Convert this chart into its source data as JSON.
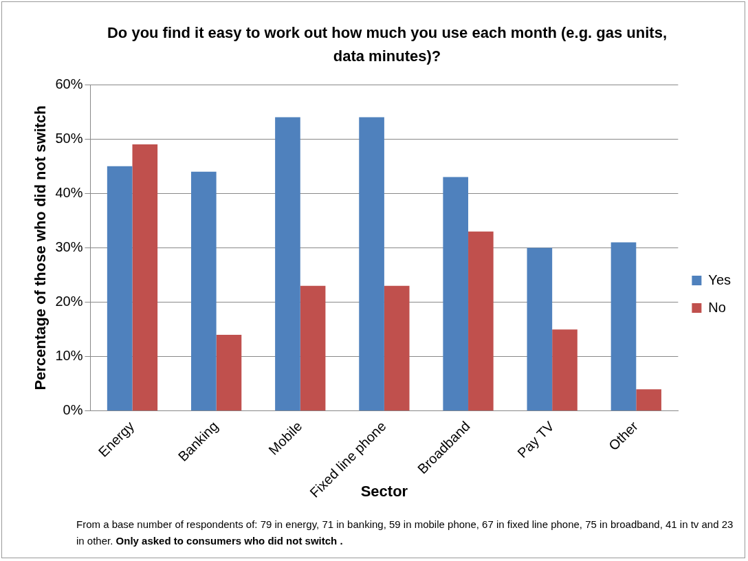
{
  "chart_data": {
    "type": "bar",
    "title": "Do you find it easy to work out how much you use each month (e.g. gas units, data minutes)?",
    "xlabel": "Sector",
    "ylabel": "Percentage of those who did not switch",
    "categories": [
      "Energy",
      "Banking",
      "Mobile",
      "Fixed line phone",
      "Broadband",
      "Pay TV",
      "Other"
    ],
    "series": [
      {
        "name": "Yes",
        "color": "#4f81bd",
        "values": [
          45,
          44,
          54,
          54,
          43,
          30,
          31
        ]
      },
      {
        "name": "No",
        "color": "#c0504d",
        "values": [
          49,
          14,
          23,
          23,
          33,
          15,
          4
        ]
      }
    ],
    "ylim": [
      0,
      60
    ],
    "yticks": [
      {
        "value": 0,
        "label": "0%"
      },
      {
        "value": 10,
        "label": "10%"
      },
      {
        "value": 20,
        "label": "20%"
      },
      {
        "value": 30,
        "label": "30%"
      },
      {
        "value": 40,
        "label": "40%"
      },
      {
        "value": 50,
        "label": "50%"
      },
      {
        "value": 60,
        "label": "60%"
      }
    ],
    "grid": "y",
    "legend": "right",
    "annotations": [
      "From a base number of respondents of: 79 in energy, 71 in banking, 59 in mobile phone, 67 in fixed line phone, 75 in broadband,  41 in tv and 23  in other.",
      "Only asked to consumers who did not switch ."
    ]
  }
}
